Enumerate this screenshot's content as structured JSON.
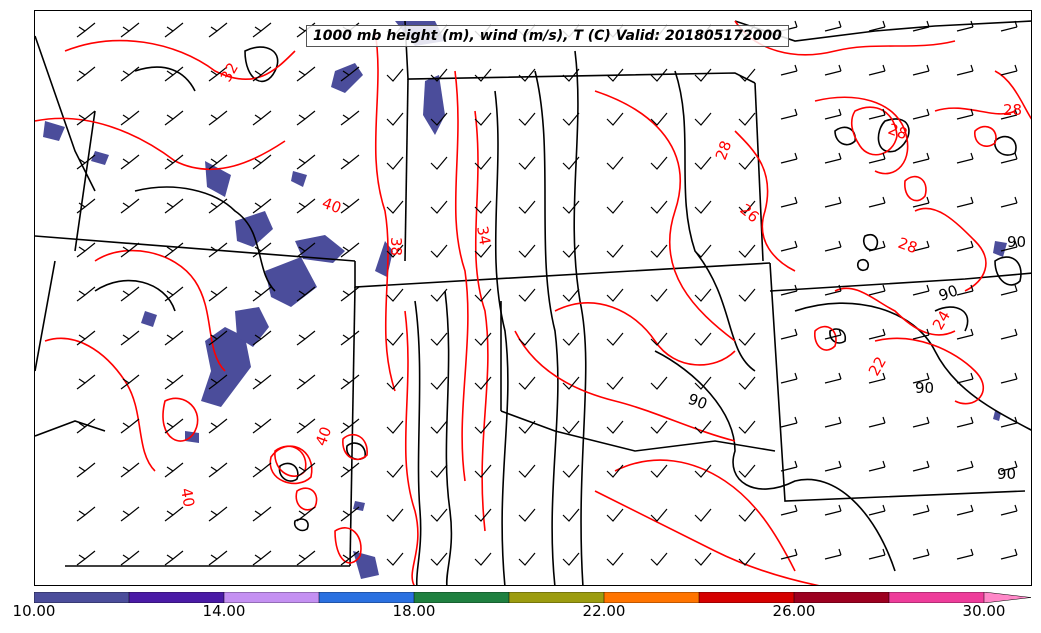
{
  "title": "1000 mb height (m), wind (m/s), T (C) Valid: 201805172000",
  "colorbar": {
    "colors": [
      "#4b4d9b",
      "#4a1aa6",
      "#c490f2",
      "#2a70e0",
      "#1f8040",
      "#9c9c10",
      "#ff7400",
      "#d50000",
      "#9c0020",
      "#ee3c9a",
      "#ff88c8"
    ],
    "tick_labels": [
      "10.00",
      "14.00",
      "18.00",
      "22.00",
      "26.00",
      "30.00"
    ]
  },
  "contour_labels": {
    "temperature": [
      "32",
      "40",
      "38",
      "34",
      "28",
      "26",
      "28",
      "28",
      "28",
      "24",
      "22",
      "40",
      "40"
    ],
    "height": [
      "90",
      "90",
      "90",
      "90",
      "90"
    ]
  },
  "colors": {
    "temperature_contour": "#ff0000",
    "height_contour": "#000000",
    "wind_shading": "#4b4d9b",
    "borders": "#000000"
  }
}
